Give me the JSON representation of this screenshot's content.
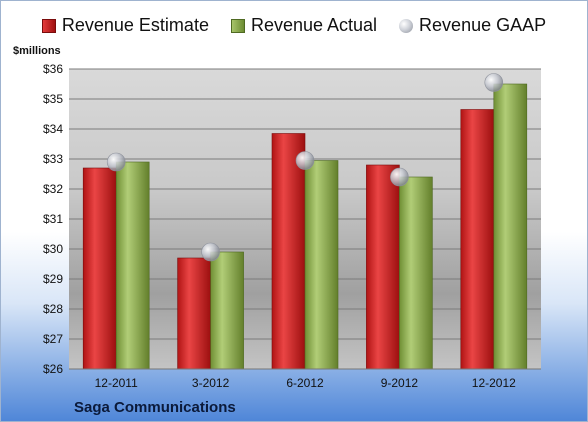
{
  "chart_data": {
    "type": "bar",
    "unit_label": "$millions",
    "company": "Saga Communications",
    "categories": [
      "12-2011",
      "3-2012",
      "6-2012",
      "9-2012",
      "12-2012"
    ],
    "series": [
      {
        "name": "Revenue Estimate",
        "values": [
          32.7,
          29.7,
          33.85,
          32.8,
          34.65
        ],
        "color": "#c81e1e"
      },
      {
        "name": "Revenue Actual",
        "values": [
          32.9,
          29.9,
          32.95,
          32.4,
          35.5
        ],
        "color": "#8aa84e"
      },
      {
        "name": "Revenue GAAP",
        "values": [
          32.9,
          29.9,
          32.95,
          32.4,
          35.55
        ],
        "color": "#b8bcc6"
      }
    ],
    "ylim": [
      26,
      36
    ],
    "yticks": [
      "$26",
      "$27",
      "$28",
      "$29",
      "$30",
      "$31",
      "$32",
      "$33",
      "$34",
      "$35",
      "$36"
    ],
    "grid": true,
    "legend_position": "top"
  }
}
